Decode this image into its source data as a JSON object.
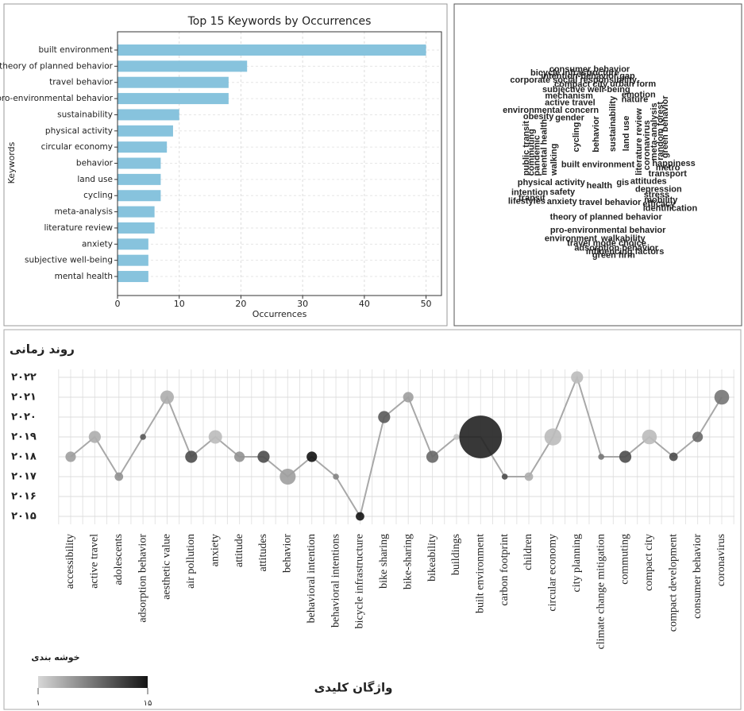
{
  "chart_data": [
    {
      "type": "hbar",
      "title": "Top 15 Keywords by Occurrences",
      "xlabel": "Occurrences",
      "ylabel": "Keywords",
      "categories": [
        "built environment",
        "theory of planned behavior",
        "travel behavior",
        "pro-environmental behavior",
        "sustainability",
        "physical activity",
        "circular economy",
        "behavior",
        "land use",
        "cycling",
        "meta-analysis",
        "literature review",
        "anxiety",
        "subjective well-being",
        "mental health"
      ],
      "values": [
        50,
        21,
        18,
        18,
        10,
        9,
        8,
        7,
        7,
        7,
        6,
        6,
        5,
        5,
        5
      ],
      "color": "#87c3dd",
      "xlim": [
        0,
        52.5
      ],
      "xticks": [
        0,
        10,
        20,
        30,
        40,
        50
      ],
      "grid": true
    },
    {
      "type": "wordcloud",
      "words": [
        {
          "text": "built environment",
          "weight": 60,
          "color": "#1a4d1a"
        },
        {
          "text": "health",
          "weight": 46,
          "color": "#a8609a"
        },
        {
          "text": "behavior",
          "weight": 42,
          "color": "#a0609f",
          "rotated": true
        },
        {
          "text": "travel behavior",
          "weight": 40,
          "color": "#1f3fbf"
        },
        {
          "text": "sustainability",
          "weight": 38,
          "color": "#8fd6b0",
          "rotated": true
        },
        {
          "text": "cycling",
          "weight": 36,
          "color": "#9fe0c0",
          "rotated": true
        },
        {
          "text": "theory of planned behavior",
          "weight": 34,
          "color": "#e07b1a"
        },
        {
          "text": "physical activity",
          "weight": 30,
          "color": "#c0306a"
        },
        {
          "text": "pro-environmental behavior",
          "weight": 30,
          "color": "#1f2a7a"
        },
        {
          "text": "land use",
          "weight": 30,
          "color": "#1a2a6a",
          "rotated": true
        },
        {
          "text": "gis",
          "weight": 30,
          "color": "#e07b1a"
        },
        {
          "text": "anxiety",
          "weight": 30,
          "color": "#1f3fbf"
        },
        {
          "text": "walking",
          "weight": 24,
          "color": "#2040b0",
          "rotated": true
        },
        {
          "text": "literature review",
          "weight": 20,
          "color": "#b070a0",
          "rotated": true
        },
        {
          "text": "environmental concern",
          "weight": 20,
          "color": "#1a3a8a"
        },
        {
          "text": "attitudes",
          "weight": 20,
          "color": "#c04020"
        },
        {
          "text": "coronavirus",
          "weight": 18,
          "color": "#c03060",
          "rotated": true
        },
        {
          "text": "mental health",
          "weight": 18,
          "color": "#8a2020",
          "rotated": true
        },
        {
          "text": "safety",
          "weight": 18,
          "color": "#e07b1a"
        },
        {
          "text": "active travel",
          "weight": 18,
          "color": "#c07090"
        },
        {
          "text": "meta-analysis",
          "weight": 18,
          "color": "#1a4d1a",
          "rotated": true
        },
        {
          "text": "gender",
          "weight": 16,
          "color": "#8060b0"
        },
        {
          "text": "depression",
          "weight": 16,
          "color": "#a0d8e8"
        },
        {
          "text": "mechanism",
          "weight": 16,
          "color": "#e07b1a"
        },
        {
          "text": "subjective well-being",
          "weight": 16,
          "color": "#8a5090"
        },
        {
          "text": "pandemic",
          "weight": 15,
          "color": "#90d8a0",
          "rotated": true
        },
        {
          "text": "transport",
          "weight": 14,
          "color": "#2040b0"
        },
        {
          "text": "random forest",
          "weight": 12,
          "color": "#a0d8c0",
          "rotated": true
        },
        {
          "text": "walkability",
          "weight": 12,
          "color": "#1f3fbf"
        },
        {
          "text": "travel mode choice",
          "weight": 12,
          "color": "#a0e0c0"
        },
        {
          "text": "stress",
          "weight": 12,
          "color": "#c03060"
        },
        {
          "text": "environment",
          "weight": 12,
          "color": "#2040b0"
        },
        {
          "text": "compact city",
          "weight": 11,
          "color": "#a070a0"
        },
        {
          "text": "adsorption behavior",
          "weight": 10,
          "color": "#2040b0"
        },
        {
          "text": "green behavior",
          "weight": 10,
          "color": "#2a6a2a",
          "rotated": true
        },
        {
          "text": "corporate social responsibility",
          "weight": 10,
          "color": "#2040b0"
        },
        {
          "text": "mobility",
          "weight": 10,
          "color": "#c04020"
        },
        {
          "text": "intention",
          "weight": 10,
          "color": "#1a4d9a"
        },
        {
          "text": "nature",
          "weight": 10,
          "color": "#c0a060"
        },
        {
          "text": "happiness",
          "weight": 9,
          "color": "#2040b0"
        },
        {
          "text": "intention-behavior gap",
          "weight": 9,
          "color": "#1a2a6a"
        },
        {
          "text": "metro",
          "weight": 9,
          "color": "#4060b0"
        },
        {
          "text": "commuting",
          "weight": 9,
          "color": "#e07b1a",
          "rotated": true
        },
        {
          "text": "emotion",
          "weight": 9,
          "color": "#c04020"
        },
        {
          "text": "influencing factors",
          "weight": 9,
          "color": "#c03060"
        },
        {
          "text": "efficacy",
          "weight": 9,
          "color": "#2040b0"
        },
        {
          "text": "identification",
          "weight": 9,
          "color": "#e07b1a"
        },
        {
          "text": "lifestyles",
          "weight": 8,
          "color": "#e07b1a"
        },
        {
          "text": "obesity",
          "weight": 8,
          "color": "#c03060"
        },
        {
          "text": "urban form",
          "weight": 8,
          "color": "#2a6a2a"
        },
        {
          "text": "green hrm",
          "weight": 8,
          "color": "#8a2020"
        },
        {
          "text": "bicycle infrastructure",
          "weight": 8,
          "color": "#a0d8c0"
        },
        {
          "text": "consumer behavior",
          "weight": 8,
          "color": "#1f3fbf"
        },
        {
          "text": "transit",
          "weight": 8,
          "color": "#2040b0"
        },
        {
          "text": "public transit",
          "weight": 8,
          "color": "#8a5090",
          "rotated": true
        }
      ]
    },
    {
      "type": "bubble",
      "ylabel": "روند زمانی",
      "xlabel": "واژگان کلیدی",
      "categories": [
        "accessibility",
        "active travel",
        "adolescents",
        "adsorption behavior",
        "aesthetic value",
        "air pollution",
        "anxiety",
        "attitude",
        "attitudes",
        "behavior",
        "behavioral intention",
        "behavioral intentions",
        "bicycle infrastructure",
        "bike sharing",
        "bike-sharing",
        "bikeability",
        "buildings",
        "built environment",
        "carbon footprint",
        "children",
        "circular economy",
        "city planning",
        "climate change mitigation",
        "commuting",
        "compact city",
        "compact development",
        "consumer behavior",
        "coronavirus"
      ],
      "values": [
        2018,
        2019,
        2017,
        2019,
        2021,
        2018,
        2019,
        2018,
        2018,
        2017,
        2018,
        2017,
        2015,
        2020,
        2021,
        2018,
        2019,
        2019,
        2017,
        2017,
        2019,
        2022,
        2018,
        2018,
        2019,
        2018,
        2019,
        2021
      ],
      "sizes": [
        3,
        4,
        2,
        1,
        5,
        4,
        5,
        3,
        4,
        7,
        3,
        1,
        2,
        4,
        3,
        4,
        1,
        50,
        1,
        2,
        8,
        4,
        1,
        4,
        6,
        2,
        3,
        6
      ],
      "clusters": [
        5,
        4,
        6,
        10,
        4,
        11,
        3,
        6,
        11,
        5,
        15,
        7,
        15,
        10,
        5,
        9,
        2,
        14,
        11,
        4,
        3,
        3,
        8,
        11,
        3,
        11,
        9,
        8
      ],
      "ylim": [
        2014.6,
        2022.4
      ],
      "yticks": [
        {
          "value": 2015,
          "label": "۲۰۱۵"
        },
        {
          "value": 2016,
          "label": "۲۰۱۶"
        },
        {
          "value": 2017,
          "label": "۲۰۱۷"
        },
        {
          "value": 2018,
          "label": "۲۰۱۸"
        },
        {
          "value": 2019,
          "label": "۲۰۱۹"
        },
        {
          "value": 2020,
          "label": "۲۰۲۰"
        },
        {
          "value": 2021,
          "label": "۲۰۲۱"
        },
        {
          "value": 2022,
          "label": "۲۰۲۲"
        }
      ],
      "colorbar_title": "خوشه بندی",
      "colorlim": [
        1,
        15
      ],
      "colorticks": [
        {
          "value": 1,
          "label": "۱"
        },
        {
          "value": 15,
          "label": "۱۵"
        }
      ],
      "grid": true
    }
  ]
}
